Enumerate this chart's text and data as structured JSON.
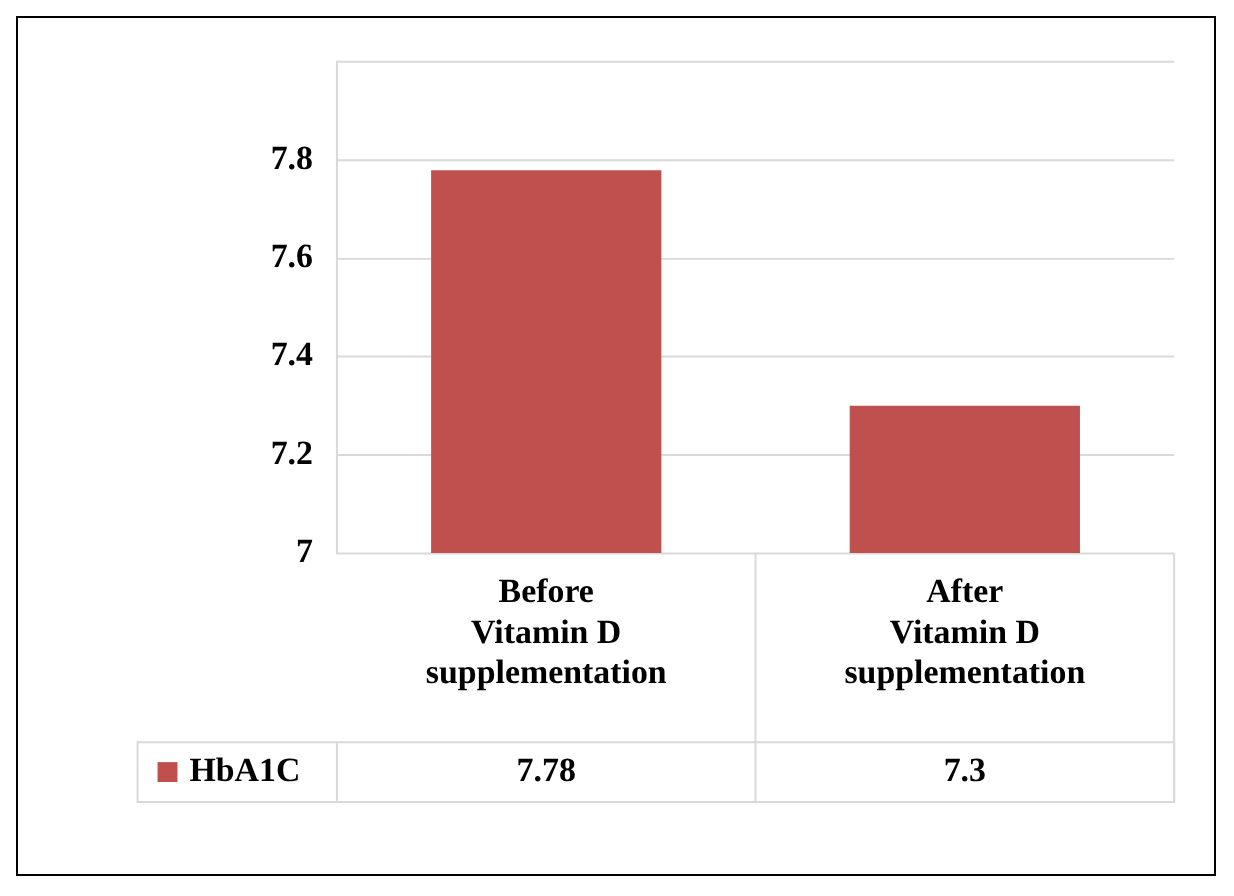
{
  "chart_data": {
    "type": "bar",
    "categories": [
      "Before Vitamin D supplementation",
      "After Vitamin D supplementation"
    ],
    "series": [
      {
        "name": "HbA1C",
        "color": "#c0504d",
        "values": [
          7.78,
          7.3
        ]
      }
    ],
    "ylim": [
      7,
      8
    ],
    "yticks": [
      7,
      7.2,
      7.4,
      7.6,
      7.8,
      {
        "value": 8,
        "label": null
      }
    ],
    "grid": "y",
    "legend": "bottom",
    "data_labels": true
  }
}
